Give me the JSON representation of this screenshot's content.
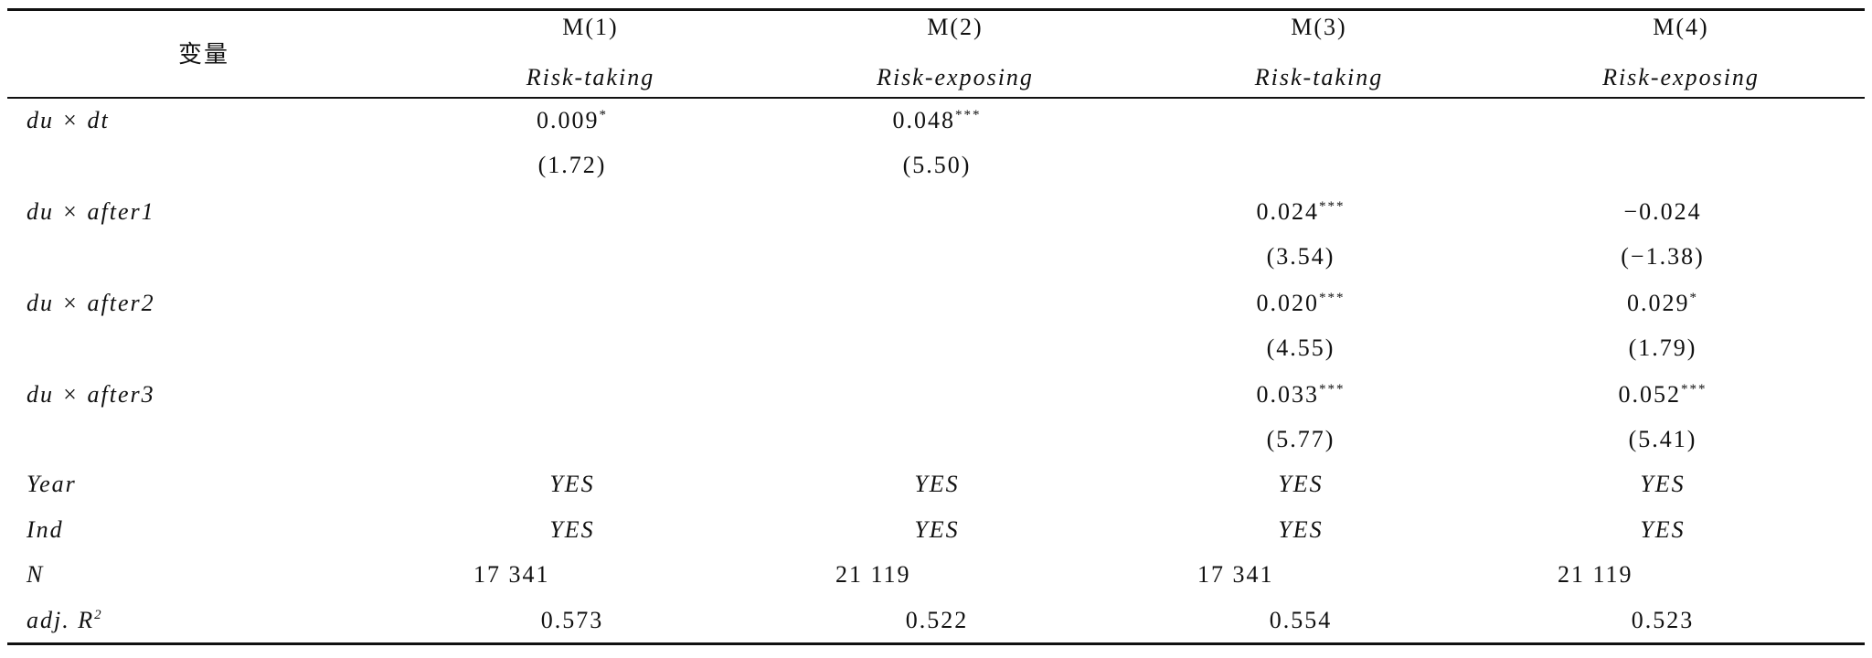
{
  "table": {
    "header": {
      "label": "变量",
      "columns": [
        {
          "model": "M(1)",
          "dep": "Risk-taking"
        },
        {
          "model": "M(2)",
          "dep": "Risk-exposing"
        },
        {
          "model": "M(3)",
          "dep": "Risk-taking"
        },
        {
          "model": "M(4)",
          "dep": "Risk-exposing"
        }
      ]
    },
    "coef_rows": [
      {
        "label": "du × dt",
        "coef": [
          {
            "v": "0.009",
            "stars": "*"
          },
          {
            "v": "0.048",
            "stars": "***"
          },
          null,
          null
        ],
        "t": [
          "(1.72)",
          "(5.50)",
          null,
          null
        ]
      },
      {
        "label": "du × after1",
        "coef": [
          null,
          null,
          {
            "v": "0.024",
            "stars": "***"
          },
          {
            "v": "−0.024",
            "stars": null
          }
        ],
        "t": [
          null,
          null,
          "(3.54)",
          "(−1.38)"
        ]
      },
      {
        "label": "du × after2",
        "coef": [
          null,
          null,
          {
            "v": "0.020",
            "stars": "***"
          },
          {
            "v": "0.029",
            "stars": "*"
          }
        ],
        "t": [
          null,
          null,
          "(4.55)",
          "(1.79)"
        ]
      },
      {
        "label": "du × after3",
        "coef": [
          null,
          null,
          {
            "v": "0.033",
            "stars": "***"
          },
          {
            "v": "0.052",
            "stars": "***"
          }
        ],
        "t": [
          null,
          null,
          "(5.77)",
          "(5.41)"
        ]
      }
    ],
    "control_rows": [
      {
        "label": "Year",
        "cells": [
          "YES",
          "YES",
          "YES",
          "YES"
        ]
      },
      {
        "label": "Ind",
        "cells": [
          "YES",
          "YES",
          "YES",
          "YES"
        ]
      },
      {
        "label": "N",
        "cells": [
          "17 341",
          "21 119",
          "17 341",
          "21 119"
        ]
      },
      {
        "label": "adj. R",
        "label_sup": "2",
        "cells": [
          "0.573",
          "0.522",
          "0.554",
          "0.523"
        ]
      }
    ]
  }
}
